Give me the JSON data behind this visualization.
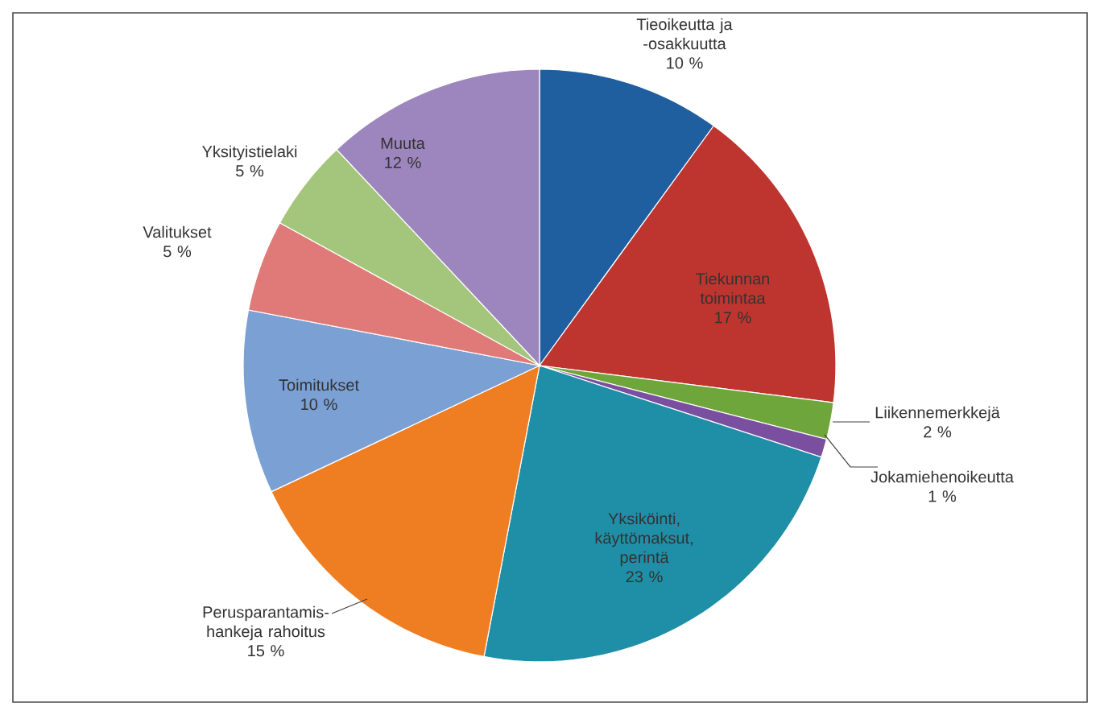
{
  "chart_data": {
    "type": "pie",
    "categories": [
      "Tieoikeutta ja -osakkuutta",
      "Tiekunnan toimintaa",
      "Liikennemerkkejä",
      "Jokamiehenoikeutta",
      "Yksiköinti, käyttömaksut, perintä",
      "Perusparantamis-hankeja rahoitus",
      "Toimitukset",
      "Valitukset",
      "Yksityistielaki",
      "Muuta"
    ],
    "values": [
      10,
      17,
      2,
      1,
      23,
      15,
      10,
      5,
      5,
      12
    ],
    "colors": [
      "#1f5fa0",
      "#be3530",
      "#6ea63c",
      "#7b4fa0",
      "#1f8fa8",
      "#ef7d22",
      "#7aa0d4",
      "#e07a78",
      "#a4c67c",
      "#9d86bd"
    ],
    "value_labels": [
      "10 %",
      "17 %",
      "2 %",
      "1 %",
      "23 %",
      "15 %",
      "10 %",
      "5 %",
      "5 %",
      "12 %"
    ]
  }
}
